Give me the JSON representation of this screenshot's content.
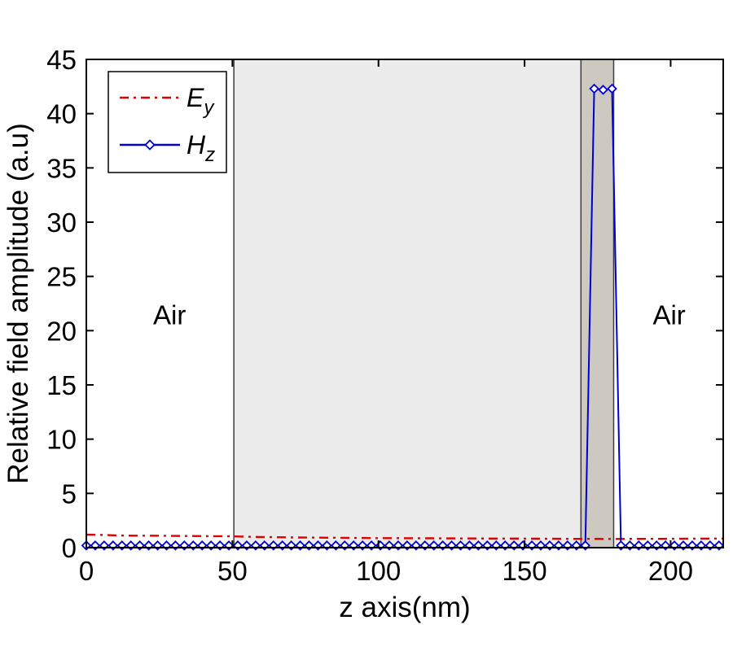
{
  "figure": {
    "background": "#ffffff",
    "frame_color": "#000000"
  },
  "chart_data": {
    "type": "line",
    "title": "",
    "xlabel": "z axis(nm)",
    "ylabel": "Relative field amplitude (a.u)",
    "xlim": [
      0,
      218
    ],
    "ylim": [
      0,
      45
    ],
    "xticks": [
      0,
      50,
      100,
      150,
      200
    ],
    "yticks": [
      0,
      5,
      10,
      15,
      20,
      25,
      30,
      35,
      40,
      45
    ],
    "grid": false,
    "legend": {
      "position": "top-left",
      "entries": [
        "E_y",
        "H_z"
      ]
    },
    "regions": [
      {
        "name": "air-left",
        "label": "Air",
        "x0": 0,
        "x1": 50.5,
        "color": "#ffffff",
        "label_x": 28.5,
        "label_y": 21.4
      },
      {
        "name": "slab",
        "label": "",
        "x0": 50.5,
        "x1": 169.3,
        "color": "#ececec",
        "label_x": null,
        "label_y": null
      },
      {
        "name": "thin-layer",
        "label": "",
        "x0": 169.3,
        "x1": 180.5,
        "color": "#cdc9c0",
        "label_x": null,
        "label_y": null
      },
      {
        "name": "air-right",
        "label": "Air",
        "x0": 180.5,
        "x1": 218,
        "color": "#ffffff",
        "label_x": 199.5,
        "label_y": 21.4
      }
    ],
    "series": [
      {
        "name": "E_y",
        "label_main": "E",
        "label_sub": "y",
        "color": "#e00000",
        "line": "dashdot",
        "marker": "none",
        "points": [
          [
            0,
            1.2
          ],
          [
            6,
            1.17
          ],
          [
            12,
            1.12
          ],
          [
            18,
            1.1
          ],
          [
            24,
            1.1
          ],
          [
            30,
            1.08
          ],
          [
            36,
            1.07
          ],
          [
            42,
            1.06
          ],
          [
            48,
            1.05
          ],
          [
            54,
            1.01
          ],
          [
            60,
            0.98
          ],
          [
            66,
            0.96
          ],
          [
            72,
            0.94
          ],
          [
            80,
            0.92
          ],
          [
            90,
            0.9
          ],
          [
            100,
            0.88
          ],
          [
            110,
            0.87
          ],
          [
            120,
            0.86
          ],
          [
            130,
            0.85
          ],
          [
            140,
            0.84
          ],
          [
            150,
            0.83
          ],
          [
            160,
            0.82
          ],
          [
            170,
            0.81
          ],
          [
            180,
            0.8
          ],
          [
            190,
            0.81
          ],
          [
            200,
            0.82
          ],
          [
            210,
            0.83
          ],
          [
            218,
            0.84
          ]
        ]
      },
      {
        "name": "H_z",
        "label_main": "H",
        "label_sub": "z",
        "color": "#0000d0",
        "line": "solid",
        "marker": "diamond",
        "marker_fill": "#ffffff",
        "x": [
          0,
          3.05,
          6.1,
          9.15,
          12.2,
          15.25,
          18.3,
          21.35,
          24.4,
          27.45,
          30.5,
          33.55,
          36.6,
          39.65,
          42.7,
          45.75,
          48.8,
          51.85,
          54.9,
          57.95,
          61,
          64.05,
          67.1,
          70.15,
          73.2,
          76.25,
          79.3,
          82.35,
          85.4,
          88.45,
          91.5,
          94.55,
          97.6,
          100.65,
          103.7,
          106.75,
          109.8,
          112.85,
          115.9,
          118.95,
          122,
          125.05,
          128.1,
          131.15,
          134.2,
          137.25,
          140.3,
          143.35,
          146.4,
          149.45,
          152.5,
          155.55,
          158.6,
          161.65,
          164.7,
          167.75,
          170.8,
          173.85,
          176.9,
          179.95,
          183,
          186.05,
          189.1,
          192.15,
          195.2,
          198.25,
          201.3,
          204.35,
          207.4,
          210.45,
          213.5,
          216.55
        ],
        "y": [
          0.2,
          0.2,
          0.2,
          0.2,
          0.2,
          0.2,
          0.2,
          0.2,
          0.2,
          0.2,
          0.2,
          0.2,
          0.2,
          0.2,
          0.2,
          0.2,
          0.2,
          0.2,
          0.2,
          0.2,
          0.2,
          0.2,
          0.2,
          0.2,
          0.2,
          0.2,
          0.2,
          0.2,
          0.2,
          0.2,
          0.2,
          0.2,
          0.2,
          0.2,
          0.2,
          0.2,
          0.2,
          0.2,
          0.2,
          0.2,
          0.2,
          0.2,
          0.2,
          0.2,
          0.2,
          0.2,
          0.2,
          0.2,
          0.2,
          0.2,
          0.2,
          0.2,
          0.2,
          0.2,
          0.2,
          0.2,
          0.2,
          42.3,
          42.2,
          42.3,
          0.2,
          0.2,
          0.2,
          0.2,
          0.2,
          0.2,
          0.2,
          0.2,
          0.2,
          0.2,
          0.2,
          0.2
        ]
      }
    ]
  }
}
